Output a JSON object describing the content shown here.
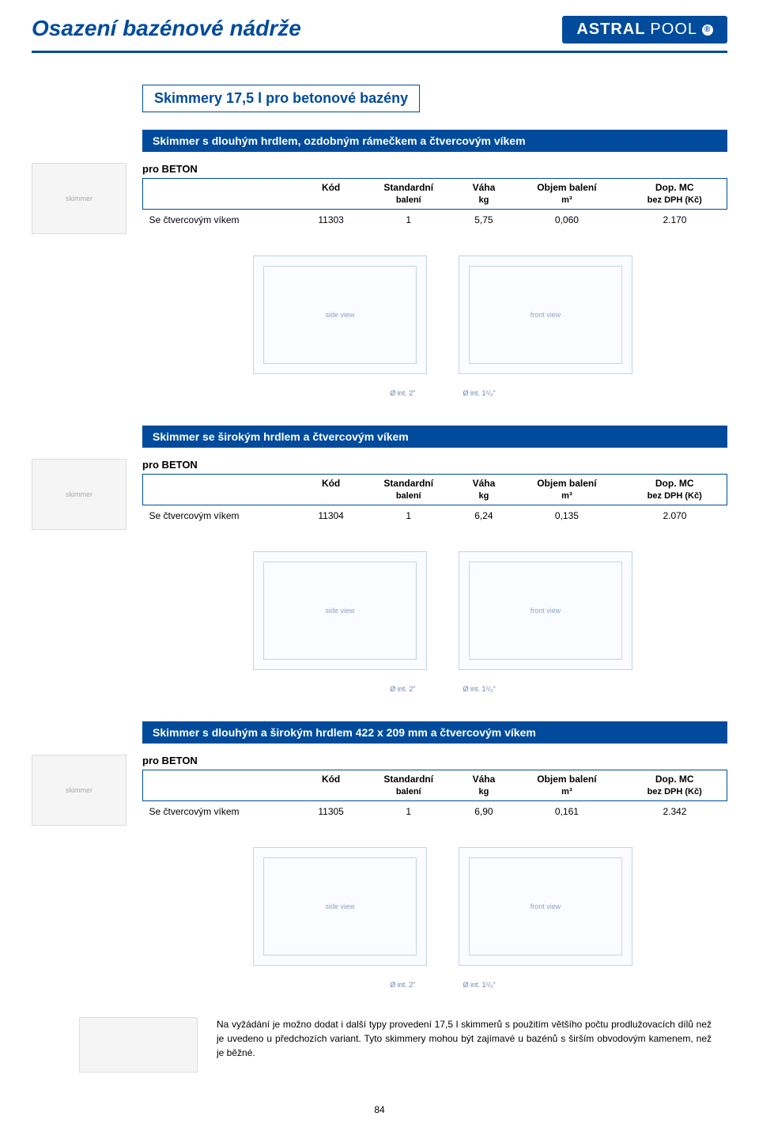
{
  "header": {
    "title": "Osazení bazénové nádrže",
    "brand_main": "ASTRAL",
    "brand_sub": "POOL",
    "brand_reg": "®"
  },
  "subtitle": "Skimmery 17,5 l pro betonové bazény",
  "columns": {
    "c0": "",
    "c1": "Kód",
    "c2_line1": "Standardní",
    "c2_line2": "balení",
    "c3_line1": "Váha",
    "c3_line2": "kg",
    "c4_line1": "Objem balení",
    "c4_line2": "m³",
    "c5_line1": "Dop. MC",
    "c5_line2": "bez DPH (Kč)"
  },
  "pro_beton": "pro BETON",
  "sections": [
    {
      "bar": "Skimmer s dlouhým hrdlem, ozdobným rámečkem a čtvercovým víkem",
      "row": {
        "label": "Se čtvercovým víkem",
        "code": "11303",
        "pack": "1",
        "weight": "5,75",
        "volume": "0,060",
        "price": "2.170"
      },
      "diam": {
        "a": "Ø int. 2\"",
        "b": "Ø int. 1¹/₂\""
      }
    },
    {
      "bar": "Skimmer se širokým hrdlem a čtvercovým víkem",
      "row": {
        "label": "Se čtvercovým víkem",
        "code": "11304",
        "pack": "1",
        "weight": "6,24",
        "volume": "0,135",
        "price": "2.070"
      },
      "diam": {
        "a": "Ø int. 2\"",
        "b": "Ø int. 1¹/₂\""
      }
    },
    {
      "bar": "Skimmer s dlouhým a širokým hrdlem 422 x 209 mm a čtvercovým víkem",
      "row": {
        "label": "Se čtvercovým víkem",
        "code": "11305",
        "pack": "1",
        "weight": "6,90",
        "volume": "0,161",
        "price": "2.342"
      },
      "diam": {
        "a": "Ø int. 2\"",
        "b": "Ø int. 1¹/₂\""
      }
    }
  ],
  "note": "Na vyžádání je možno dodat i další typy provedení 17,5 l skimmerů s použitím většího počtu prodlužovacích dílů než je uvedeno u předchozích variant. Tyto skimmery mohou být zajímavé u bazénů s širším obvodovým kamenem, než je běžné.",
  "page_number": "84",
  "colors": {
    "brand_blue": "#004b9b",
    "drawing_line": "#c5d3e8",
    "drawing_bg": "#fafcff"
  }
}
